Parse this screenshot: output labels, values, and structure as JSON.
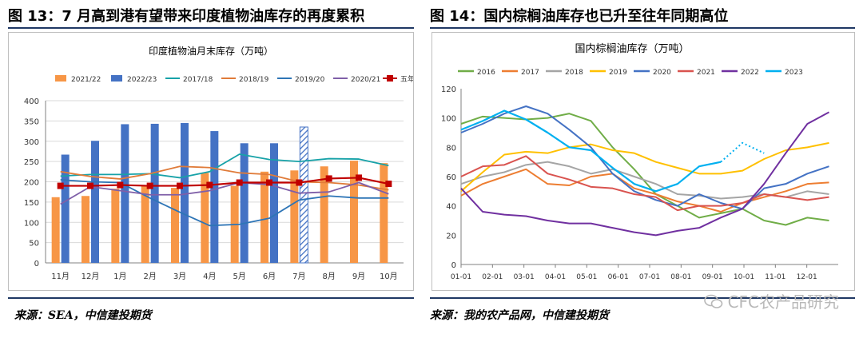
{
  "left": {
    "figure_title": "图 13：7 月高到港有望带来印度植物油库存的再度累积",
    "source": "来源：SEA，中信建投期货",
    "chart_data": {
      "type": "bar",
      "title": "印度植物油月末库存（万吨）",
      "categories": [
        "11月",
        "12月",
        "1月",
        "2月",
        "3月",
        "4月",
        "5月",
        "6月",
        "7月",
        "8月",
        "9月",
        "10月"
      ],
      "ylim": [
        0,
        400
      ],
      "yticks": [
        "0",
        "50",
        "100",
        "150",
        "200",
        "250",
        "300",
        "350",
        "400"
      ],
      "bar_series": [
        {
          "name": "2021/22",
          "color": "#f79646",
          "values": [
            162,
            165,
            183,
            190,
            185,
            222,
            190,
            225,
            228,
            238,
            252,
            246
          ]
        },
        {
          "name": "2022/23",
          "color": "#4472c4",
          "values": [
            267,
            301,
            342,
            343,
            345,
            325,
            295,
            295,
            335,
            null,
            null,
            null
          ],
          "hatched_index": 8
        }
      ],
      "line_series": [
        {
          "name": "2017/18",
          "color": "#17a2a8",
          "values": [
            214,
            218,
            218,
            220,
            210,
            225,
            268,
            255,
            250,
            257,
            256,
            240
          ]
        },
        {
          "name": "2018/19",
          "color": "#e07b39",
          "values": [
            225,
            213,
            207,
            220,
            238,
            235,
            222,
            218,
            200,
            198,
            192,
            180
          ]
        },
        {
          "name": "2019/20",
          "color": "#2e75b6",
          "values": [
            205,
            200,
            198,
            160,
            125,
            92,
            95,
            110,
            155,
            165,
            160,
            160
          ]
        },
        {
          "name": "2020/21",
          "color": "#7f5fa8",
          "values": [
            145,
            188,
            178,
            168,
            168,
            178,
            198,
            193,
            172,
            175,
            198,
            170
          ]
        },
        {
          "name": "五年均值",
          "color": "#c00000",
          "marker": "square",
          "values": [
            190,
            190,
            192,
            190,
            190,
            192,
            198,
            198,
            198,
            208,
            210,
            195
          ]
        }
      ],
      "grid": true,
      "legend": "top"
    }
  },
  "right": {
    "figure_title": "图 14：国内棕榈油库存也已升至往年同期高位",
    "source": "来源：我的农产品网，中信建投期货",
    "watermark": "CFC农产品研究",
    "chart_data": {
      "type": "line",
      "title": "国内棕榈油库存（万吨）",
      "x_ticks": [
        "01-01",
        "02-01",
        "03-01",
        "04-01",
        "05-01",
        "06-01",
        "07-01",
        "08-01",
        "09-01",
        "10-01",
        "11-01",
        "12-01"
      ],
      "ylim": [
        0,
        120
      ],
      "yticks": [
        "0",
        "20",
        "40",
        "60",
        "80",
        "100",
        "120"
      ],
      "grid": false,
      "legend": "top",
      "series": [
        {
          "name": "2016",
          "color": "#70ad47",
          "values": [
            96,
            101,
            100,
            99,
            100,
            103,
            98,
            80,
            65,
            48,
            40,
            32,
            35,
            38,
            30,
            27,
            32,
            30
          ]
        },
        {
          "name": "2017",
          "color": "#ed7d31",
          "values": [
            47,
            55,
            60,
            65,
            55,
            54,
            60,
            62,
            52,
            48,
            43,
            40,
            36,
            42,
            46,
            50,
            55,
            56
          ]
        },
        {
          "name": "2018",
          "color": "#a5a5a5",
          "values": [
            55,
            60,
            63,
            68,
            70,
            67,
            62,
            65,
            60,
            55,
            48,
            47,
            45,
            46,
            48,
            46,
            50,
            48
          ]
        },
        {
          "name": "2019",
          "color": "#ffc000",
          "values": [
            50,
            63,
            75,
            77,
            76,
            80,
            82,
            78,
            76,
            70,
            66,
            62,
            62,
            64,
            72,
            78,
            80,
            83
          ]
        },
        {
          "name": "2020",
          "color": "#4472c4",
          "values": [
            90,
            96,
            103,
            108,
            103,
            92,
            80,
            62,
            50,
            44,
            40,
            48,
            42,
            38,
            52,
            55,
            62,
            67
          ]
        },
        {
          "name": "2021",
          "color": "#d9534f",
          "values": [
            60,
            67,
            68,
            74,
            62,
            58,
            53,
            52,
            48,
            46,
            37,
            40,
            40,
            42,
            48,
            46,
            44,
            46
          ]
        },
        {
          "name": "2022",
          "color": "#7030a0",
          "values": [
            52,
            36,
            34,
            33,
            30,
            28,
            28,
            25,
            22,
            20,
            23,
            25,
            32,
            38,
            55,
            76,
            96,
            104
          ]
        },
        {
          "name": "2023",
          "color": "#00b0f0",
          "values": [
            92,
            98,
            105,
            99,
            90,
            80,
            78,
            66,
            55,
            50,
            55,
            67,
            70,
            83,
            76
          ]
        }
      ]
    }
  }
}
